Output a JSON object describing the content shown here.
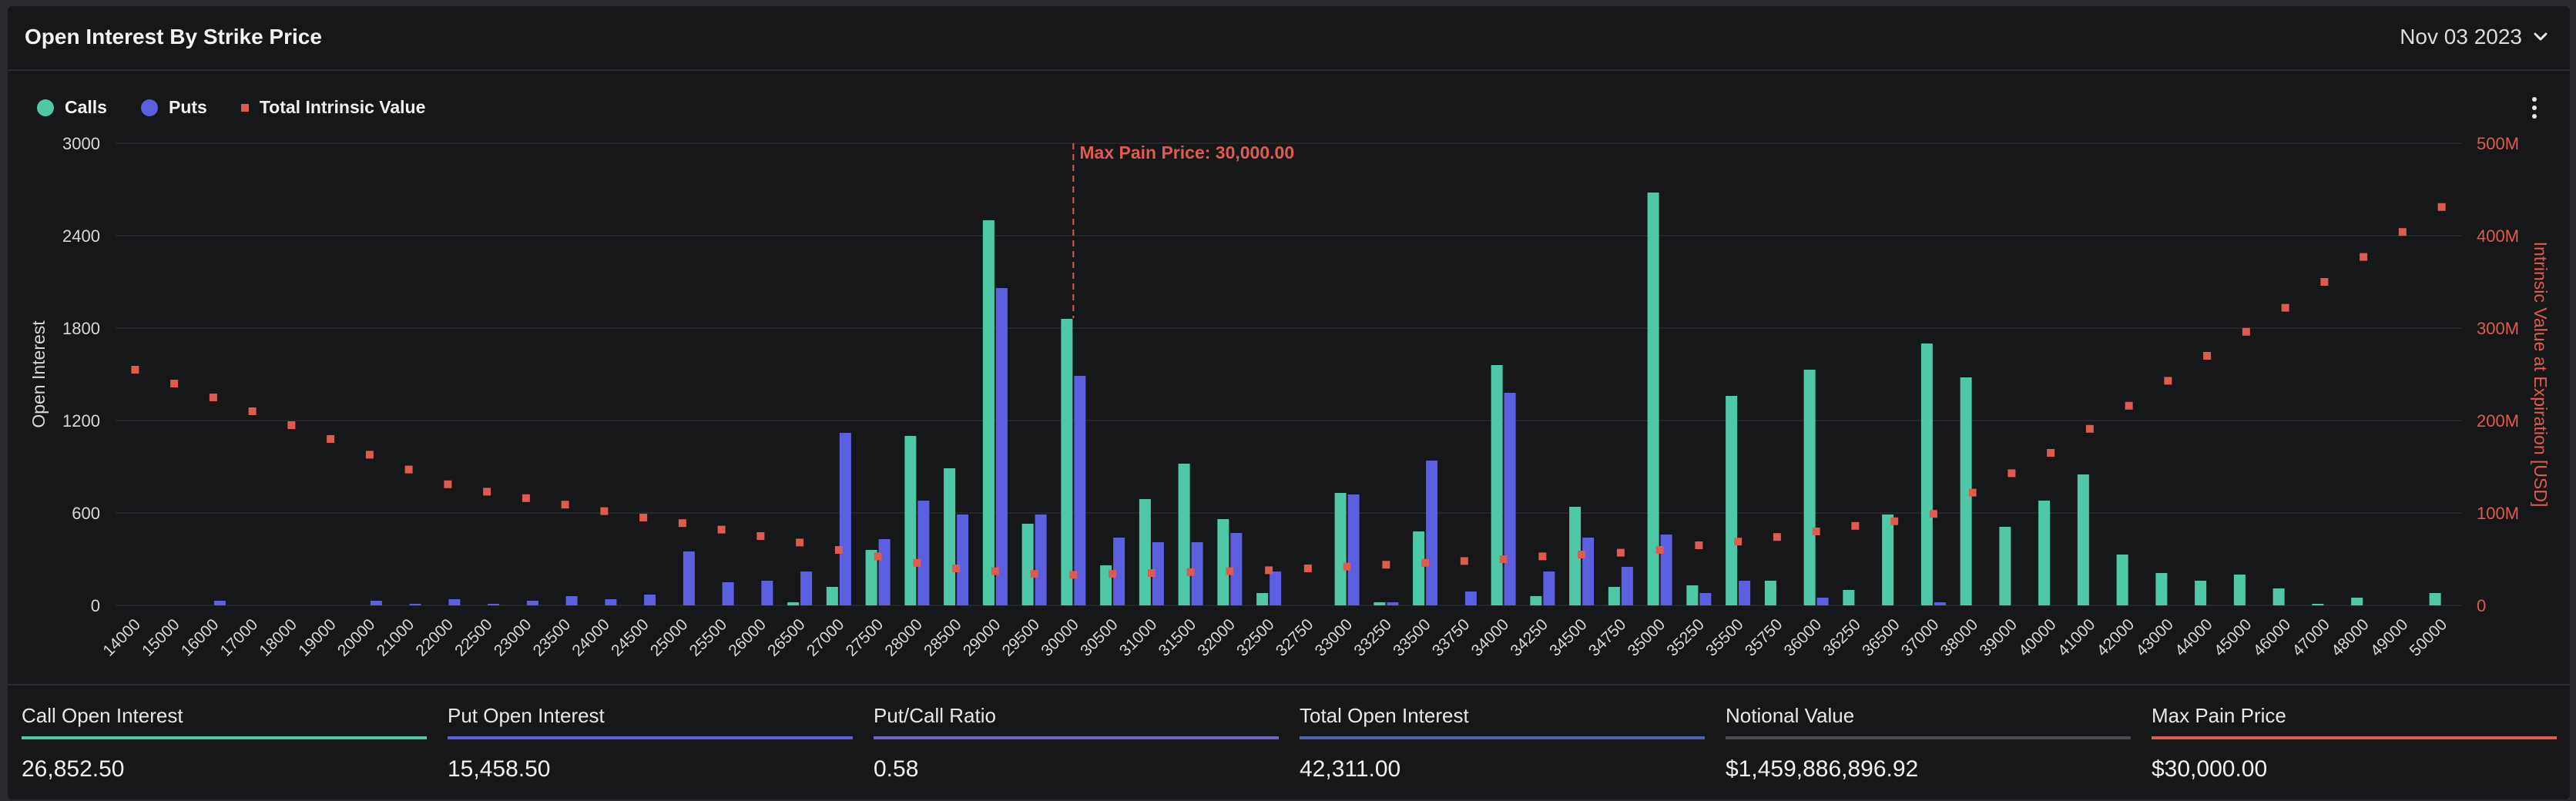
{
  "header": {
    "title": "Open Interest By Strike Price",
    "date": "Nov 03 2023"
  },
  "legend": [
    {
      "label": "Calls",
      "color": "#4fc8a8"
    },
    {
      "label": "Puts",
      "color": "#5b5fe0"
    },
    {
      "label": "Total Intrinsic Value",
      "color": "#e05a4e"
    }
  ],
  "chart_data": {
    "type": "bar",
    "title": "Open Interest By Strike Price",
    "ylabel": "Open Interest",
    "y2label": "Intrinsic Value at Expiration [USD]",
    "ylim": [
      0,
      3000
    ],
    "y2lim": [
      0,
      500
    ],
    "yticks": [
      "0",
      "600",
      "1200",
      "1800",
      "2400",
      "3000"
    ],
    "y2ticks": [
      "0",
      "100M",
      "200M",
      "300M",
      "400M",
      "500M"
    ],
    "max_pain_label": "Max Pain Price: 30,000.00",
    "max_pain_strike": "30000",
    "categories": [
      "14000",
      "15000",
      "16000",
      "17000",
      "18000",
      "19000",
      "20000",
      "21000",
      "22000",
      "22500",
      "23000",
      "23500",
      "24000",
      "24500",
      "25000",
      "25500",
      "26000",
      "26500",
      "27000",
      "27500",
      "28000",
      "28500",
      "29000",
      "29500",
      "30000",
      "30500",
      "31000",
      "31500",
      "32000",
      "32500",
      "32750",
      "33000",
      "33250",
      "33500",
      "33750",
      "34000",
      "34250",
      "34500",
      "34750",
      "35000",
      "35250",
      "35500",
      "35750",
      "36000",
      "36250",
      "36500",
      "37000",
      "38000",
      "39000",
      "40000",
      "41000",
      "42000",
      "43000",
      "44000",
      "45000",
      "46000",
      "47000",
      "48000",
      "49000",
      "50000"
    ],
    "series": [
      {
        "name": "Calls",
        "color": "#4fc8a8",
        "values": [
          0,
          0,
          0,
          0,
          0,
          0,
          0,
          0,
          0,
          0,
          0,
          0,
          0,
          0,
          0,
          0,
          0,
          20,
          120,
          360,
          1100,
          890,
          2500,
          530,
          1860,
          260,
          690,
          920,
          560,
          80,
          0,
          730,
          20,
          480,
          0,
          1560,
          60,
          640,
          120,
          2680,
          130,
          1360,
          160,
          1530,
          100,
          590,
          1700,
          1480,
          510,
          680,
          850,
          330,
          210,
          160,
          200,
          110,
          10,
          50,
          0,
          80
        ]
      },
      {
        "name": "Puts",
        "color": "#5b5fe0",
        "values": [
          0,
          0,
          30,
          0,
          0,
          0,
          30,
          10,
          40,
          10,
          30,
          60,
          40,
          70,
          350,
          150,
          160,
          220,
          1120,
          430,
          680,
          590,
          2060,
          590,
          1490,
          440,
          410,
          410,
          470,
          220,
          0,
          720,
          20,
          940,
          90,
          1380,
          220,
          440,
          250,
          460,
          80,
          160,
          0,
          50,
          0,
          0,
          20,
          0,
          0,
          0,
          0,
          0,
          0,
          0,
          0,
          0,
          0,
          0,
          0,
          0
        ]
      },
      {
        "name": "Total Intrinsic Value",
        "color": "#e05a4e",
        "values": [
          255,
          240,
          225,
          210,
          195,
          180,
          163,
          147,
          131,
          123,
          116,
          109,
          102,
          95,
          89,
          82,
          75,
          68,
          60,
          53,
          46,
          40,
          37,
          34,
          33,
          34,
          35,
          36,
          37,
          38,
          40,
          42,
          44,
          46,
          48,
          50,
          53,
          55,
          57,
          60,
          65,
          69,
          74,
          80,
          86,
          91,
          99,
          122,
          143,
          165,
          191,
          216,
          243,
          270,
          296,
          322,
          350,
          377,
          404,
          431
        ]
      }
    ]
  },
  "stats": [
    {
      "label": "Call Open Interest",
      "value": "26,852.50",
      "color": "#4fc8a8"
    },
    {
      "label": "Put Open Interest",
      "value": "15,458.50",
      "color": "#5b5fe0"
    },
    {
      "label": "Put/Call Ratio",
      "value": "0.58",
      "color": "#6f63c9"
    },
    {
      "label": "Total Open Interest",
      "value": "42,311.00",
      "color": "#5162b8"
    },
    {
      "label": "Notional Value",
      "value": "$1,459,886,896.92",
      "color": "#4b4c53"
    },
    {
      "label": "Max Pain Price",
      "value": "$30,000.00",
      "color": "#e05a4e"
    }
  ]
}
